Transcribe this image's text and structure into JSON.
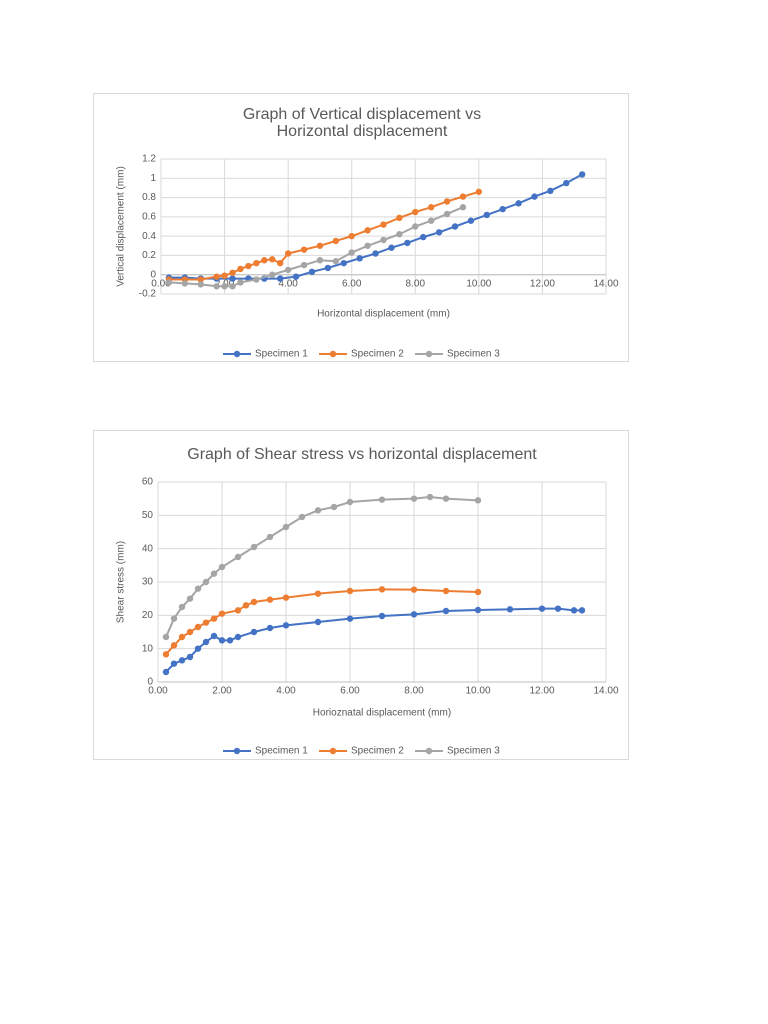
{
  "chart_data": [
    {
      "type": "line",
      "title": "Graph of Vertical displacement vs Horizontal displacement",
      "xlabel": "Horizontal displacement (mm)",
      "ylabel": "Vertical displacement (mm)",
      "xlim": [
        0,
        14
      ],
      "xticks": [
        {
          "value": 0,
          "label": "0.00"
        },
        {
          "value": 2,
          "label": "2.00"
        },
        {
          "value": 4,
          "label": "4.00"
        },
        {
          "value": 6,
          "label": "6.00"
        },
        {
          "value": 8,
          "label": "8.00"
        },
        {
          "value": 10,
          "label": "10.00"
        },
        {
          "value": 12,
          "label": "12.00"
        },
        {
          "value": 14,
          "label": "14.00"
        }
      ],
      "ylim": [
        -0.2,
        1.2
      ],
      "yticks": [
        -0.2,
        0,
        0.2,
        0.4,
        0.6,
        0.8,
        1,
        1.2
      ],
      "grid": true,
      "legend": "bottom",
      "series": [
        {
          "name": "Specimen 1",
          "color": "#4472c4",
          "x": [
            0.25,
            0.75,
            1.25,
            1.75,
            2.25,
            2.75,
            3.25,
            3.75,
            4.25,
            4.75,
            5.25,
            5.75,
            6.25,
            6.75,
            7.25,
            7.75,
            8.25,
            8.75,
            9.25,
            9.75,
            10.25,
            10.75,
            11.25,
            11.75,
            12.25,
            12.75,
            13.25
          ],
          "values": [
            -0.03,
            -0.03,
            -0.04,
            -0.04,
            -0.04,
            -0.04,
            -0.04,
            -0.04,
            -0.02,
            0.03,
            0.07,
            0.12,
            0.17,
            0.22,
            0.28,
            0.33,
            0.39,
            0.44,
            0.5,
            0.56,
            0.62,
            0.68,
            0.74,
            0.81,
            0.87,
            0.95,
            1.04
          ]
        },
        {
          "name": "Specimen 2",
          "color": "#ed7d31",
          "x": [
            0.25,
            0.75,
            1.25,
            1.75,
            2.0,
            2.25,
            2.5,
            2.75,
            3.0,
            3.25,
            3.5,
            3.75,
            4.0,
            4.5,
            5.0,
            5.5,
            6.0,
            6.5,
            7.0,
            7.5,
            8.0,
            8.5,
            9.0,
            9.5,
            10.0
          ],
          "values": [
            -0.05,
            -0.05,
            -0.05,
            -0.02,
            -0.01,
            0.02,
            0.06,
            0.09,
            0.12,
            0.15,
            0.16,
            0.12,
            0.22,
            0.26,
            0.3,
            0.35,
            0.4,
            0.46,
            0.52,
            0.59,
            0.65,
            0.7,
            0.76,
            0.81,
            0.86
          ]
        },
        {
          "name": "Specimen 3",
          "color": "#a5a5a5",
          "x": [
            0.25,
            0.75,
            1.25,
            1.75,
            2.0,
            2.25,
            2.5,
            3.0,
            3.5,
            4.0,
            4.5,
            5.0,
            5.5,
            6.0,
            6.5,
            7.0,
            7.5,
            8.0,
            8.5,
            9.0,
            9.5
          ],
          "values": [
            -0.08,
            -0.09,
            -0.1,
            -0.12,
            -0.12,
            -0.12,
            -0.08,
            -0.05,
            0,
            0.05,
            0.1,
            0.15,
            0.14,
            0.23,
            0.3,
            0.36,
            0.42,
            0.5,
            0.56,
            0.63,
            0.7
          ]
        }
      ]
    },
    {
      "type": "line",
      "title": "Graph of Shear stress vs horizontal displacement",
      "xlabel": "Horioznatal displacement (mm)",
      "ylabel": "Shear stress (mm)",
      "xlim": [
        0,
        14
      ],
      "xticks": [
        {
          "value": 0,
          "label": "0.00"
        },
        {
          "value": 2,
          "label": "2.00"
        },
        {
          "value": 4,
          "label": "4.00"
        },
        {
          "value": 6,
          "label": "6.00"
        },
        {
          "value": 8,
          "label": "8.00"
        },
        {
          "value": 10,
          "label": "10.00"
        },
        {
          "value": 12,
          "label": "12.00"
        },
        {
          "value": 14,
          "label": "14.00"
        }
      ],
      "ylim": [
        0,
        60
      ],
      "yticks": [
        0,
        10,
        20,
        30,
        40,
        50,
        60
      ],
      "grid": true,
      "legend": "bottom",
      "series": [
        {
          "name": "Specimen 1",
          "color": "#4472c4",
          "x": [
            0.25,
            0.5,
            0.75,
            1.0,
            1.25,
            1.5,
            1.75,
            2.0,
            2.25,
            2.5,
            3.0,
            3.5,
            4.0,
            5.0,
            6.0,
            7.0,
            8.0,
            9.0,
            10.0,
            11.0,
            12.0,
            12.5,
            13.0,
            13.25
          ],
          "values": [
            3,
            5.5,
            6.5,
            7.5,
            10,
            12,
            13.8,
            12.5,
            12.5,
            13.5,
            15,
            16.2,
            17,
            18,
            19,
            19.8,
            20.3,
            21.3,
            21.6,
            21.8,
            22,
            22,
            21.5,
            21.5
          ]
        },
        {
          "name": "Specimen 2",
          "color": "#ed7d31",
          "x": [
            0.25,
            0.5,
            0.75,
            1.0,
            1.25,
            1.5,
            1.75,
            2.0,
            2.5,
            2.75,
            3.0,
            3.5,
            4.0,
            5.0,
            6.0,
            7.0,
            8.0,
            9.0,
            10.0
          ],
          "values": [
            8.3,
            11,
            13.5,
            15,
            16.5,
            17.8,
            19,
            20.5,
            21.5,
            23,
            24,
            24.7,
            25.3,
            26.5,
            27.3,
            27.8,
            27.7,
            27.3,
            27
          ]
        },
        {
          "name": "Specimen 3",
          "color": "#a5a5a5",
          "x": [
            0.25,
            0.5,
            0.75,
            1.0,
            1.25,
            1.5,
            1.75,
            2.0,
            2.5,
            3.0,
            3.5,
            4.0,
            4.5,
            5.0,
            5.5,
            6.0,
            7.0,
            8.0,
            8.5,
            9.0,
            10.0
          ],
          "values": [
            13.5,
            19,
            22.5,
            25,
            28,
            30,
            32.5,
            34.5,
            37.5,
            40.5,
            43.5,
            46.5,
            49.5,
            51.5,
            52.5,
            54,
            54.7,
            55,
            55.5,
            55,
            54.5
          ]
        }
      ]
    }
  ]
}
